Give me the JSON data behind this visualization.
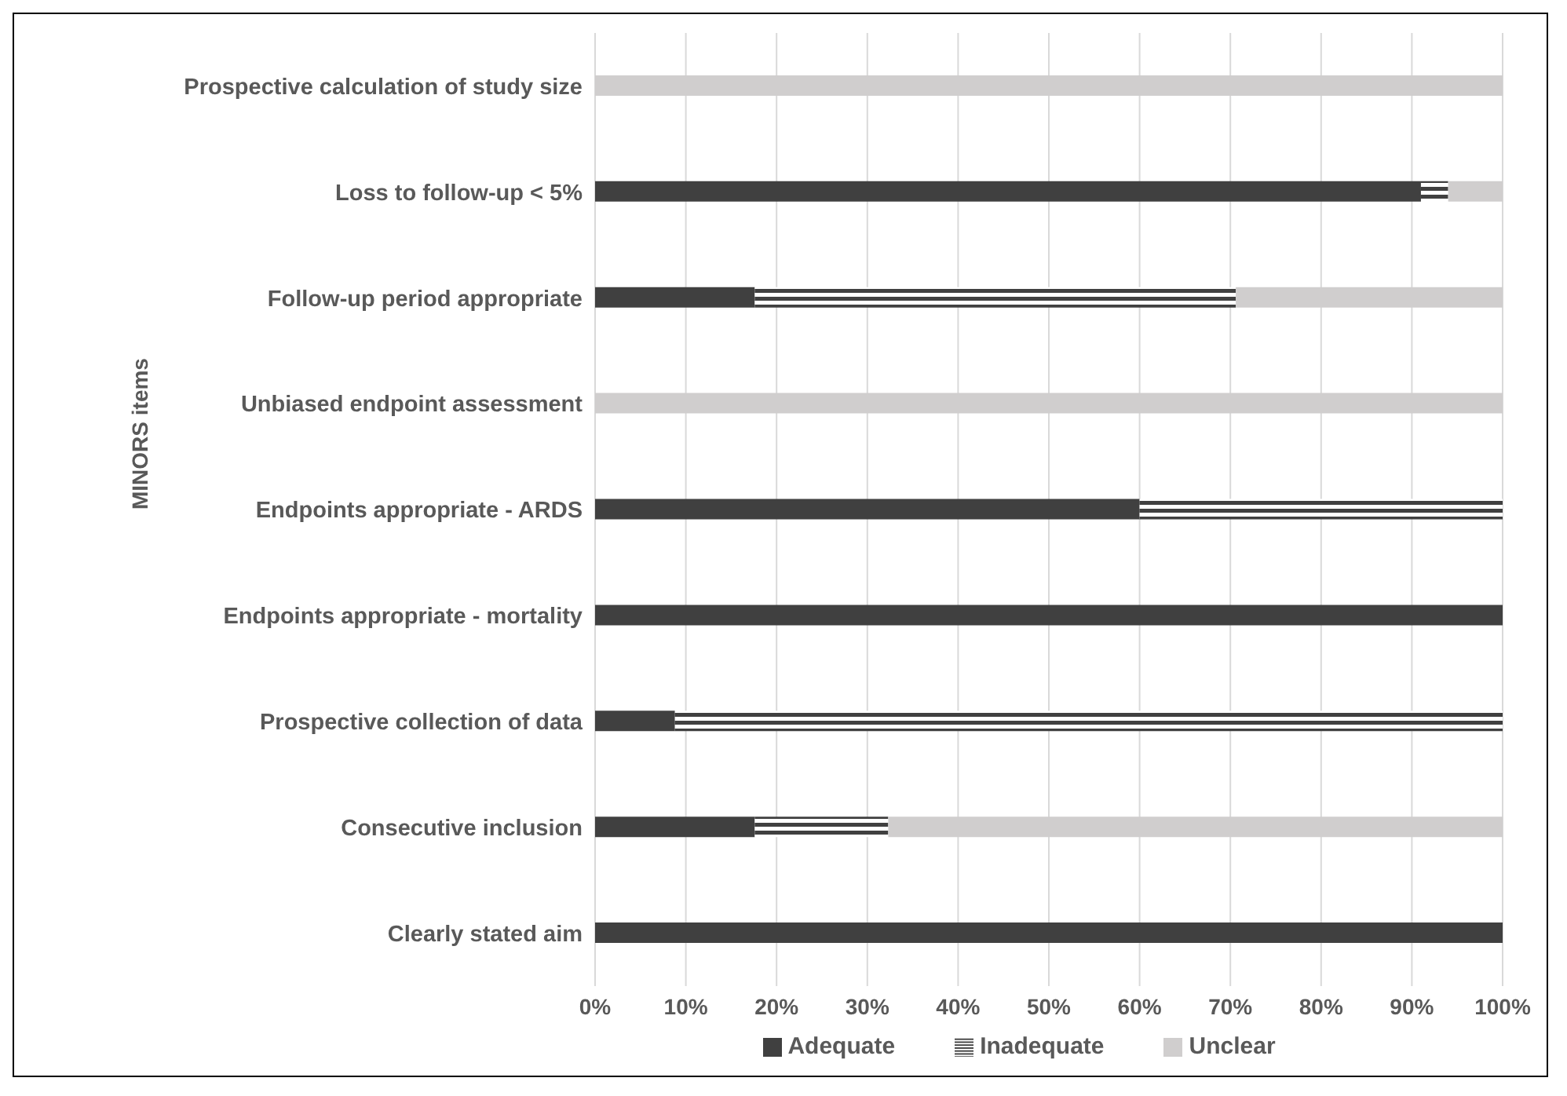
{
  "chart_data": {
    "type": "bar",
    "orientation": "horizontal",
    "stacked": true,
    "ylabel": "MINORS items",
    "categories": [
      "Prospective calculation of study size",
      "Loss to follow-up < 5%",
      "Follow-up period appropriate",
      "Unbiased endpoint assessment",
      "Endpoints appropriate - ARDS",
      "Endpoints appropriate - mortality",
      "Prospective collection of data",
      "Consecutive inclusion",
      "Clearly stated aim"
    ],
    "series": [
      {
        "name": "Adequate",
        "color": "#404040",
        "values": [
          0,
          91,
          17.6,
          0,
          60,
          100,
          8.8,
          17.6,
          100
        ]
      },
      {
        "name": "Inadequate",
        "color": "#404040",
        "values": [
          0,
          3,
          53,
          0,
          40,
          0,
          91.2,
          14.7,
          0
        ]
      },
      {
        "name": "Unclear",
        "color": "#d0cece",
        "values": [
          100,
          6,
          29.4,
          100,
          0,
          0,
          0,
          67.7,
          0
        ]
      }
    ],
    "xlim": [
      0,
      100
    ],
    "xticks": [
      {
        "value": 0,
        "label": "0%"
      },
      {
        "value": 10,
        "label": "10%"
      },
      {
        "value": 20,
        "label": "20%"
      },
      {
        "value": 30,
        "label": "30%"
      },
      {
        "value": 40,
        "label": "40%"
      },
      {
        "value": 50,
        "label": "50%"
      },
      {
        "value": 60,
        "label": "60%"
      },
      {
        "value": 70,
        "label": "70%"
      },
      {
        "value": 80,
        "label": "80%"
      },
      {
        "value": 90,
        "label": "90%"
      },
      {
        "value": 100,
        "label": "100%"
      }
    ],
    "grid": "x",
    "legend": "bottom"
  }
}
